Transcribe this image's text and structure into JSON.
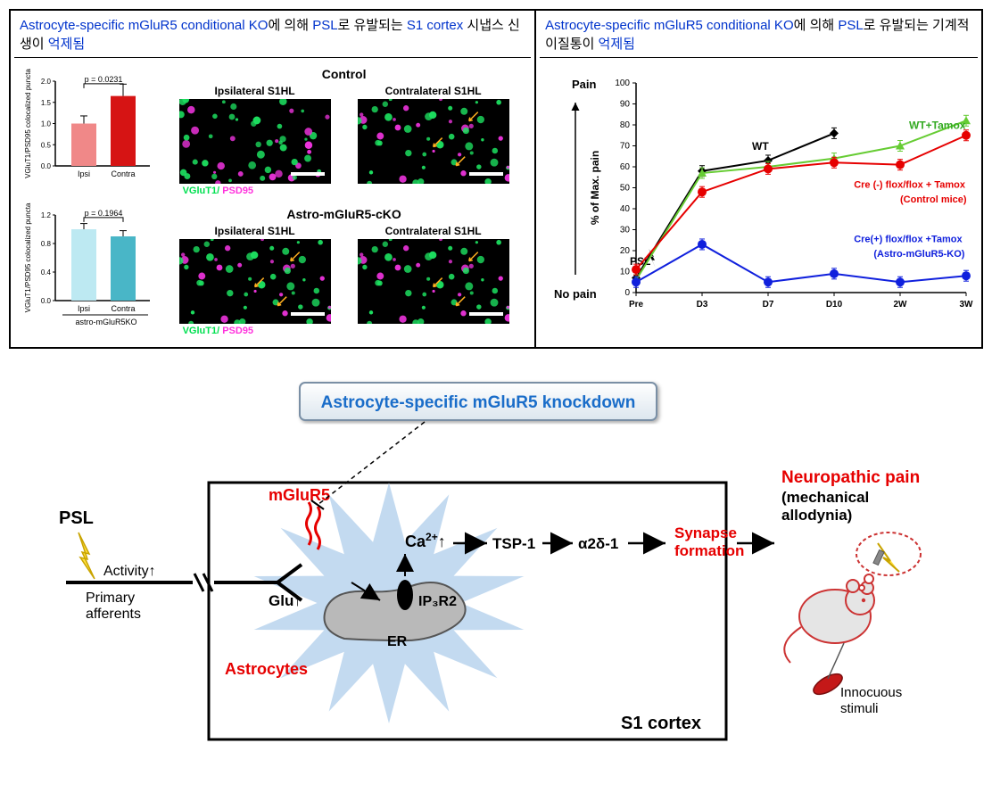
{
  "panel_left": {
    "title_parts": [
      "Astrocyte-specific mGluR5 conditional KO",
      "에 의해 ",
      "PSL",
      "로 유발되는 ",
      "S1 cortex",
      " 시냅스 신생이 ",
      "억제됨"
    ],
    "bar1": {
      "ylabel": "VGluT1/PSD95 colocalized puncta",
      "p_text": "p = 0.0231",
      "cats": [
        "Ipsi",
        "Contra"
      ],
      "values": [
        1.0,
        1.65
      ],
      "err": [
        0.18,
        0.28
      ],
      "colors": [
        "#f08888",
        "#d61414"
      ],
      "ymax": 2.0
    },
    "bar2": {
      "ylabel": "VGluT1/PSD95 colocalized puncta",
      "p_text": "p = 0.1964",
      "cats": [
        "Ipsi",
        "Contra"
      ],
      "values": [
        1.0,
        0.9
      ],
      "err": [
        0.08,
        0.08
      ],
      "colors": [
        "#bde9f2",
        "#49b6c7"
      ],
      "ymax": 1.2,
      "sublabel": "astro-mGluR5KO"
    },
    "micro": {
      "control_title": "Control",
      "cko_title": "Astro-mGluR5-cKO",
      "ipsi": "Ipsilateral S1HL",
      "contra": "Contralateral S1HL",
      "fluo1": "VGluT1/",
      "fluo2": " PSD95"
    }
  },
  "panel_right": {
    "title_parts": [
      "Astrocyte-specific mGluR5 conditional KO",
      "에 의해 ",
      "PSL",
      "로 유발되는 기계적 이질통이 ",
      "억제됨"
    ],
    "chart": {
      "ylabel": "% of Max. pain",
      "pain": "Pain",
      "nopain": "No pain",
      "psl": "PSL",
      "x": [
        "Pre",
        "D3",
        "D7",
        "D10",
        "2W",
        "3W"
      ],
      "yticks": [
        0,
        10,
        20,
        30,
        40,
        50,
        60,
        70,
        80,
        90,
        100
      ],
      "series": [
        {
          "name": "WT",
          "label": "WT",
          "color": "#000000",
          "marker": "diamond",
          "values": [
            7,
            58,
            63,
            76,
            null,
            null
          ]
        },
        {
          "name": "WT_Tamox",
          "label": "WT+Tamox",
          "color": "#66cc33",
          "marker": "triangle",
          "values": [
            6,
            57,
            60,
            64,
            70,
            82
          ]
        },
        {
          "name": "Cre_neg",
          "label": "Cre (-) flox/flox + Tamox",
          "sublabel": "(Control mice)",
          "color": "#e60000",
          "marker": "circle",
          "values": [
            11,
            48,
            59,
            62,
            61,
            75
          ]
        },
        {
          "name": "Cre_pos",
          "label": "Cre(+) flox/flox +Tamox",
          "sublabel": "(Astro-mGluR5-KO)",
          "color": "#1020dd",
          "marker": "circle",
          "values": [
            5,
            23,
            5,
            9,
            5,
            8
          ]
        }
      ]
    }
  },
  "diagram": {
    "top_box": "Astrocyte-specific mGluR5 knockdown",
    "psl": "PSL",
    "activity": "Activity↑",
    "primary": "Primary\nafferents",
    "glu": "Glu↑",
    "mglur5": "mGluR5",
    "astro": "Astrocytes",
    "ca": "Ca",
    "ca_sup": "2+",
    "ca_arrow": "↑",
    "ip3r2": "IP₃R2",
    "er": "ER",
    "tsp1": "TSP-1",
    "a2d1": "α2δ-1",
    "synapse": "Synapse\nformation",
    "s1": "S1 cortex",
    "neuro": "Neuropathic pain",
    "mech": "(mechanical\nallodynia)",
    "innoc": "Innocuous\nstimuli"
  }
}
